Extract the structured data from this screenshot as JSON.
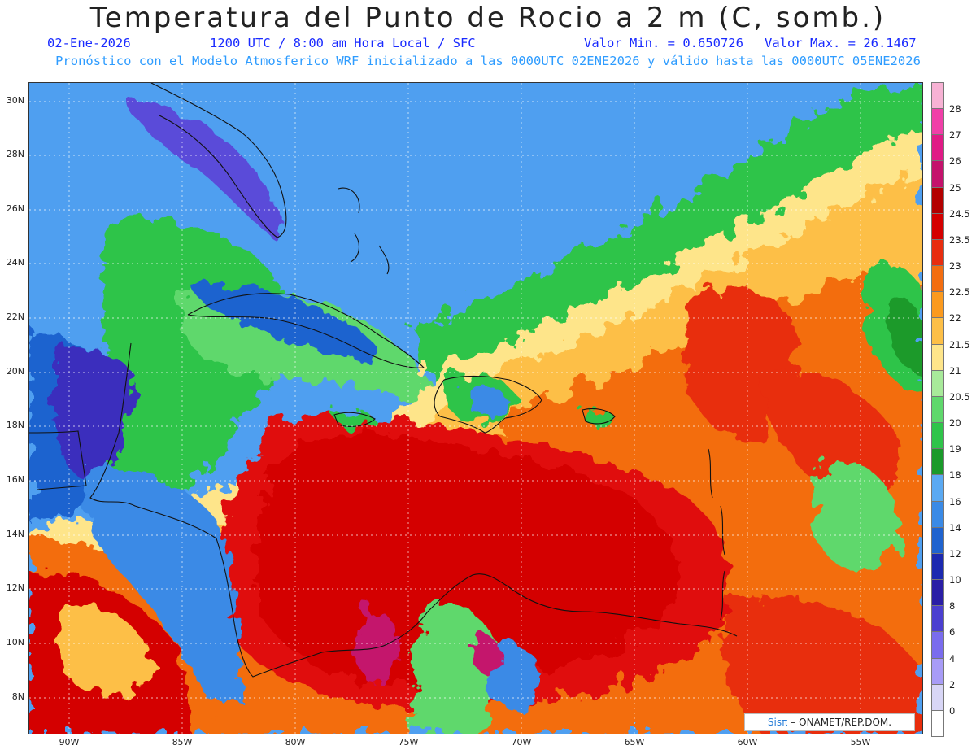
{
  "header": {
    "title": "Temperatura del Punto de Rocio a 2 m (C, somb.)",
    "date": "02-Ene-2026",
    "time_info": "1200 UTC / 8:00 am Hora Local / SFC",
    "min_label": "Valor Min. = 0.650726",
    "max_label": "Valor Max. = 26.1467",
    "model_info": "Pronóstico con el Modelo Atmosferico WRF inicializado a las 0000UTC_02ENE2026 y válido hasta las  0000UTC_05ENE2026"
  },
  "axes": {
    "lat_labels": [
      "30N",
      "28N",
      "26N",
      "24N",
      "22N",
      "20N",
      "18N",
      "16N",
      "14N",
      "12N",
      "10N",
      "8N"
    ],
    "lon_labels": [
      "90W",
      "85W",
      "80W",
      "75W",
      "70W",
      "65W",
      "60W",
      "55W"
    ]
  },
  "colorbar": {
    "labels": [
      "28",
      "27",
      "26",
      "25",
      "24.5",
      "23.5",
      "23",
      "22.5",
      "22",
      "21.5",
      "21",
      "20.5",
      "20",
      "19",
      "18",
      "16",
      "14",
      "12",
      "10",
      "8",
      "6",
      "4",
      "2",
      "0"
    ],
    "colors": [
      "#f7b2d4",
      "#f03fa8",
      "#e01a86",
      "#c4126c",
      "#b30000",
      "#d40000",
      "#e82d0f",
      "#f36d10",
      "#fb9a1e",
      "#fdbf47",
      "#fee58a",
      "#a8ea9a",
      "#5fd86c",
      "#2fc44a",
      "#1a9a2a",
      "#5aa9f2",
      "#3a8ae6",
      "#1f63cf",
      "#1c29b0",
      "#2a1ea6",
      "#4b3fd0",
      "#7a6cee",
      "#a89cf7",
      "#d8d6f6",
      "#ffffff"
    ]
  },
  "credit": {
    "logo": "Sisπ",
    "text": "– ONAMET/REP.DOM."
  }
}
